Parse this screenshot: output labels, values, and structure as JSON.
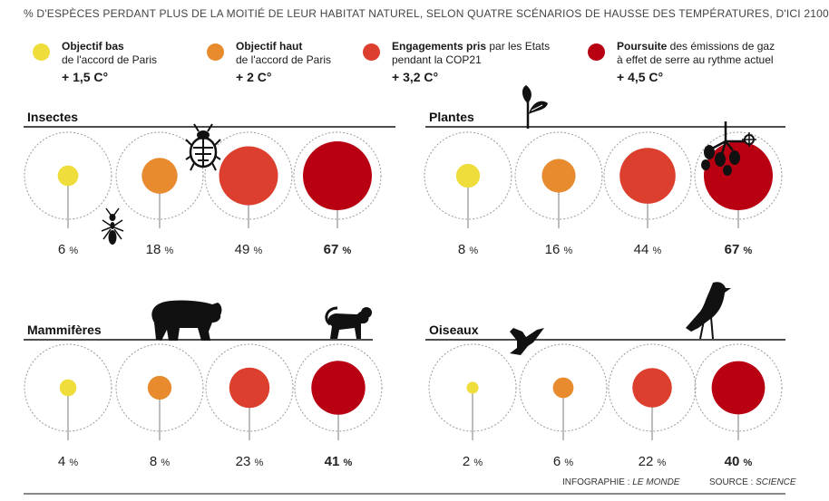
{
  "title": "% D'ESPÈCES PERDANT PLUS DE LA MOITIÉ DE LEUR HABITAT NATUREL, SELON QUATRE SCÉNARIOS DE HAUSSE DES TEMPÉRATURES, D'ICI 2100",
  "legend": [
    {
      "bold": "Objectif bas",
      "rest1": "",
      "line2": "de l'accord de Paris",
      "temp": "+ 1,5 C°",
      "color": "#eedd3a"
    },
    {
      "bold": "Objectif haut",
      "rest1": "",
      "line2": "de l'accord de Paris",
      "temp": "+ 2 C°",
      "color": "#e88a2e"
    },
    {
      "bold": "Engagements pris",
      "rest1": " par les Etats",
      "line2": "pendant la COP21",
      "temp": "+ 3,2 C°",
      "color": "#dd3f2f"
    },
    {
      "bold": "Poursuite",
      "rest1": " des émissions de gaz",
      "line2": "à effet de serre au rythme actuel",
      "temp": "+ 4,5 C°",
      "color": "#b80012"
    }
  ],
  "chart_data": [
    {
      "type": "bubble",
      "group": "Insectes",
      "categories": [
        "+ 1,5 C°",
        "+ 2 C°",
        "+ 3,2 C°",
        "+ 4,5 C°"
      ],
      "values": [
        6,
        18,
        49,
        67
      ],
      "labels": [
        "6",
        "18",
        "49",
        "67"
      ],
      "unit": "%"
    },
    {
      "type": "bubble",
      "group": "Plantes",
      "categories": [
        "+ 1,5 C°",
        "+ 2 C°",
        "+ 3,2 C°",
        "+ 4,5 C°"
      ],
      "values": [
        8,
        16,
        44,
        67
      ],
      "labels": [
        "8",
        "16",
        "44",
        "67"
      ],
      "unit": "%"
    },
    {
      "type": "bubble",
      "group": "Mammifères",
      "categories": [
        "+ 1,5 C°",
        "+ 2 C°",
        "+ 3,2 C°",
        "+ 4,5 C°"
      ],
      "values": [
        4,
        8,
        23,
        41
      ],
      "labels": [
        "4",
        "8",
        "23",
        "41"
      ],
      "unit": "%"
    },
    {
      "type": "bubble",
      "group": "Oiseaux",
      "categories": [
        "+ 1,5 C°",
        "+ 2 C°",
        "+ 3,2 C°",
        "+ 4,5 C°"
      ],
      "values": [
        2,
        6,
        22,
        40
      ],
      "labels": [
        "2",
        "6",
        "22",
        "40"
      ],
      "unit": "%"
    }
  ],
  "colors": [
    "#eedd3a",
    "#e88a2e",
    "#dd3f2f",
    "#b80012"
  ],
  "credits": {
    "infographie_label": "INFOGRAPHIE : ",
    "infographie_name": "LE MONDE",
    "source_label": "SOURCE : ",
    "source_name": "SCIENCE"
  },
  "icons": [
    "beetle-icon",
    "ant-icon",
    "leaf-sprig-icon",
    "mistletoe-icon",
    "bear-icon",
    "monkey-icon",
    "bird-flying-icon",
    "bird-perched-icon"
  ]
}
